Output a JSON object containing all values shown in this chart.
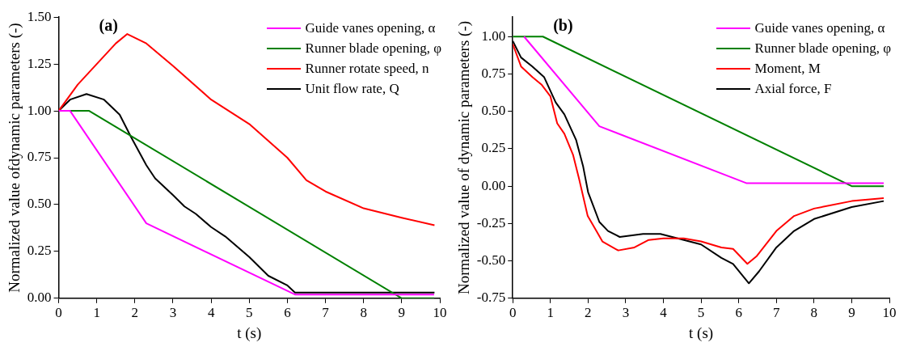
{
  "chart_data": [
    {
      "type": "line",
      "title": "(a)",
      "xlabel": "t (s)",
      "ylabel": "Normalized value ofdynamic parameters (-)",
      "xlim": [
        0,
        10
      ],
      "xticks": [
        0,
        1,
        2,
        3,
        4,
        5,
        6,
        7,
        8,
        9,
        10
      ],
      "ylim": [
        0,
        1.5
      ],
      "yticks": [
        {
          "value": 0,
          "label": "0.00"
        },
        {
          "value": 0.25,
          "label": "0.25"
        },
        {
          "value": 0.5,
          "label": "0.50"
        },
        {
          "value": 0.75,
          "label": "0.75"
        },
        {
          "value": 1,
          "label": "1.00"
        },
        {
          "value": 1.25,
          "label": "1.25"
        },
        {
          "value": 1.5,
          "label": "1.50"
        }
      ],
      "grid": false,
      "legend": "top right",
      "marker": "none",
      "line_style": "solid",
      "series": [
        {
          "name": "Guide vanes opening, α",
          "color": "#ff00ff",
          "x": [
            0,
            0.3,
            2.3,
            6.2,
            9.85
          ],
          "values": [
            1,
            1,
            0.4,
            0.02,
            0.02
          ]
        },
        {
          "name": "Runner blade opening, φ",
          "color": "#008000",
          "x": [
            0,
            0.8,
            9,
            9.85
          ],
          "values": [
            1,
            1,
            0,
            0
          ]
        },
        {
          "name": "Runner rotate speed, n",
          "color": "#ff0000",
          "x": [
            0,
            0.5,
            1,
            1.5,
            1.8,
            2.3,
            3,
            4,
            5,
            6,
            6.5,
            7,
            8,
            9,
            9.86
          ],
          "values": [
            1,
            1.14,
            1.25,
            1.36,
            1.41,
            1.36,
            1.24,
            1.06,
            0.93,
            0.75,
            0.63,
            0.57,
            0.48,
            0.43,
            0.39
          ]
        },
        {
          "name": "Unit flow rate, Q",
          "color": "#000000",
          "x": [
            0,
            0.3,
            0.73,
            1.19,
            1.6,
            1.9,
            2.3,
            2.53,
            3,
            3.3,
            3.6,
            4,
            4.37,
            5,
            5.5,
            5.99,
            6.2,
            9.86
          ],
          "values": [
            1,
            1.06,
            1.09,
            1.06,
            0.98,
            0.86,
            0.71,
            0.64,
            0.55,
            0.49,
            0.45,
            0.38,
            0.33,
            0.22,
            0.12,
            0.07,
            0.03,
            0.03
          ]
        }
      ]
    },
    {
      "type": "line",
      "title": "(b)",
      "xlabel": "t (s)",
      "ylabel": "Normalized value of dynamic parameters (-)",
      "xlim": [
        0,
        10
      ],
      "xticks": [
        0,
        1,
        2,
        3,
        4,
        5,
        6,
        7,
        8,
        9,
        10
      ],
      "ylim": [
        -0.75,
        1.13
      ],
      "yticks": [
        {
          "value": -0.75,
          "label": "-0.75"
        },
        {
          "value": -0.5,
          "label": "-0.50"
        },
        {
          "value": -0.25,
          "label": "-0.25"
        },
        {
          "value": 0,
          "label": "0.00"
        },
        {
          "value": 0.25,
          "label": "0.25"
        },
        {
          "value": 0.5,
          "label": "0.50"
        },
        {
          "value": 0.75,
          "label": "0.75"
        },
        {
          "value": 1,
          "label": "1.00"
        }
      ],
      "grid": false,
      "legend": "top right",
      "marker": "none",
      "line_style": "solid",
      "series": [
        {
          "name": "Guide vanes opening, α",
          "color": "#ff00ff",
          "x": [
            0.3,
            2.3,
            6.2,
            9.85
          ],
          "values": [
            1,
            0.4,
            0.02,
            0.02
          ]
        },
        {
          "name": "Runner blade opening, φ",
          "color": "#008000",
          "x": [
            0,
            0.8,
            9,
            9.85
          ],
          "values": [
            1,
            1,
            0,
            0
          ]
        },
        {
          "name": "Moment, M",
          "color": "#ff0000",
          "x": [
            0,
            0.22,
            0.52,
            0.76,
            1,
            1.18,
            1.37,
            1.6,
            1.76,
            1.99,
            2.22,
            2.38,
            2.8,
            3.23,
            3.61,
            4,
            4.54,
            5,
            5.54,
            5.85,
            6.23,
            6.47,
            7,
            7.47,
            8,
            9,
            9.85
          ],
          "values": [
            0.95,
            0.8,
            0.73,
            0.68,
            0.6,
            0.42,
            0.35,
            0.21,
            0.05,
            -0.2,
            -0.3,
            -0.37,
            -0.43,
            -0.41,
            -0.36,
            -0.35,
            -0.35,
            -0.37,
            -0.41,
            -0.42,
            -0.52,
            -0.47,
            -0.3,
            -0.2,
            -0.15,
            -0.1,
            -0.08
          ]
        },
        {
          "name": "Axial force, F",
          "color": "#000000",
          "x": [
            0,
            0.22,
            0.52,
            0.83,
            1.14,
            1.37,
            1.68,
            1.87,
            2,
            2.3,
            2.53,
            2.84,
            3.46,
            3.92,
            4.38,
            5,
            5.54,
            5.85,
            6.27,
            6.54,
            7,
            7.47,
            8,
            9,
            9.85
          ],
          "values": [
            0.97,
            0.86,
            0.8,
            0.73,
            0.56,
            0.48,
            0.31,
            0.13,
            -0.04,
            -0.24,
            -0.3,
            -0.34,
            -0.32,
            -0.32,
            -0.35,
            -0.39,
            -0.48,
            -0.52,
            -0.65,
            -0.57,
            -0.41,
            -0.3,
            -0.22,
            -0.14,
            -0.1
          ]
        }
      ]
    }
  ]
}
